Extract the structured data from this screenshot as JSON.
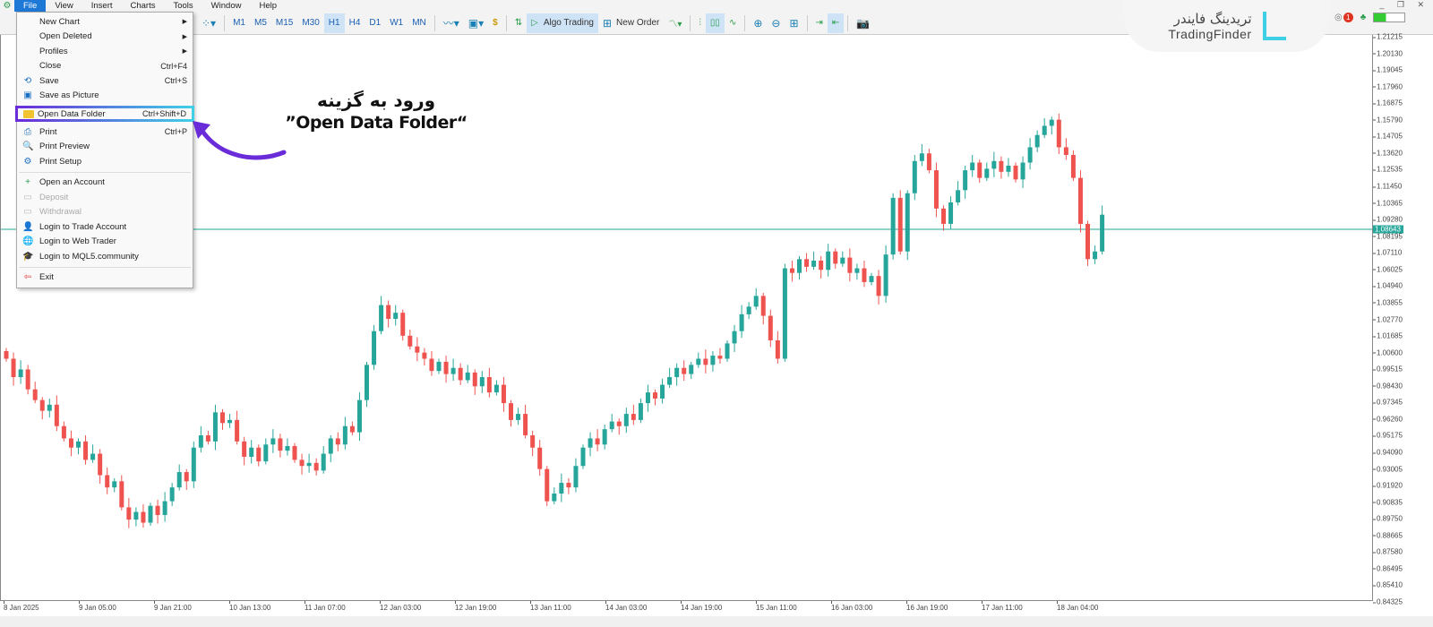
{
  "menubar": {
    "items": [
      "File",
      "View",
      "Insert",
      "Charts",
      "Tools",
      "Window",
      "Help"
    ],
    "active": "File"
  },
  "toolbar": {
    "timeframes": [
      "M1",
      "M5",
      "M15",
      "M30",
      "H1",
      "H4",
      "D1",
      "W1",
      "MN"
    ],
    "active_timeframe": "H1",
    "algo_trading": "Algo Trading",
    "new_order": "New Order"
  },
  "file_menu": {
    "items": [
      {
        "label": "New Chart",
        "submenu": true
      },
      {
        "label": "Open Deleted",
        "submenu": true
      },
      {
        "label": "Profiles",
        "submenu": true
      },
      {
        "label": "Close",
        "shortcut": "Ctrl+F4"
      },
      {
        "label": "Save",
        "shortcut": "Ctrl+S",
        "icon": "save-icon"
      },
      {
        "label": "Save as Picture",
        "icon": "picture-icon"
      },
      {
        "label": "Open Data Folder",
        "shortcut": "Ctrl+Shift+D",
        "icon": "folder-icon",
        "highlighted": true
      },
      {
        "label": "Print",
        "shortcut": "Ctrl+P",
        "icon": "printer-icon"
      },
      {
        "label": "Print Preview",
        "icon": "print-preview-icon"
      },
      {
        "label": "Print Setup",
        "icon": "print-setup-icon"
      },
      {
        "label": "Open an Account",
        "icon": "plus-icon"
      },
      {
        "label": "Deposit",
        "icon": "deposit-icon",
        "disabled": true
      },
      {
        "label": "Withdrawal",
        "icon": "withdrawal-icon",
        "disabled": true
      },
      {
        "label": "Login to Trade Account",
        "icon": "user-icon"
      },
      {
        "label": "Login to Web Trader",
        "icon": "globe-icon"
      },
      {
        "label": "Login to MQL5.community",
        "icon": "mql5-icon"
      },
      {
        "label": "Exit",
        "icon": "exit-icon"
      }
    ]
  },
  "annotation": {
    "line1": "ورود به گزینه",
    "line2": "”Open Data Folder“",
    "color": "#6a2bd9"
  },
  "logo": {
    "persian": "تریدینگ فایندر",
    "english": "TradingFinder"
  },
  "notifications": {
    "count": "1"
  },
  "chart_data": {
    "type": "candlestick",
    "ylim": [
      0.84325,
      1.21215
    ],
    "price_ticks": [
      "1.21215",
      "1.20130",
      "1.19045",
      "1.17960",
      "1.16875",
      "1.15790",
      "1.14705",
      "1.13620",
      "1.12535",
      "1.11450",
      "1.10365",
      "1.09280",
      "1.08195",
      "1.07110",
      "1.06025",
      "1.04940",
      "1.03855",
      "1.02770",
      "1.01685",
      "1.00600",
      "0.99515",
      "0.98430",
      "0.97345",
      "0.96260",
      "0.95175",
      "0.94090",
      "0.93005",
      "0.91920",
      "0.90835",
      "0.89750",
      "0.88665",
      "0.87580",
      "0.86495",
      "0.85410",
      "0.84325"
    ],
    "current_price": "1.08643",
    "time_ticks": [
      "8 Jan 2025",
      "9 Jan 05:00",
      "9 Jan 21:00",
      "10 Jan 13:00",
      "11 Jan 07:00",
      "12 Jan 03:00",
      "12 Jan 19:00",
      "13 Jan 11:00",
      "14 Jan 03:00",
      "14 Jan 19:00",
      "15 Jan 11:00",
      "16 Jan 03:00",
      "16 Jan 19:00",
      "17 Jan 11:00",
      "18 Jan 04:00"
    ],
    "bull_color": "#26a69a",
    "bear_color": "#ef5350",
    "closes": [
      1.002,
      0.99,
      0.995,
      0.982,
      0.975,
      0.968,
      0.972,
      0.958,
      0.95,
      0.944,
      0.948,
      0.936,
      0.94,
      0.926,
      0.918,
      0.922,
      0.905,
      0.897,
      0.902,
      0.895,
      0.906,
      0.9,
      0.909,
      0.918,
      0.928,
      0.922,
      0.944,
      0.952,
      0.948,
      0.967,
      0.96,
      0.962,
      0.948,
      0.938,
      0.944,
      0.935,
      0.946,
      0.95,
      0.942,
      0.945,
      0.936,
      0.932,
      0.934,
      0.929,
      0.94,
      0.95,
      0.946,
      0.958,
      0.954,
      0.975,
      0.998,
      1.02,
      1.037,
      1.028,
      1.032,
      1.017,
      1.01,
      1.006,
      1.002,
      0.994,
      1.0,
      0.992,
      0.996,
      0.988,
      0.993,
      0.984,
      0.99,
      0.98,
      0.985,
      0.973,
      0.962,
      0.966,
      0.952,
      0.944,
      0.93,
      0.909,
      0.914,
      0.921,
      0.918,
      0.932,
      0.944,
      0.95,
      0.946,
      0.956,
      0.961,
      0.958,
      0.966,
      0.962,
      0.973,
      0.98,
      0.976,
      0.985,
      0.99,
      0.996,
      0.992,
      0.998,
      1.002,
      0.998,
      1.004,
      1.002,
      1.012,
      1.02,
      1.031,
      1.036,
      1.043,
      1.03,
      1.014,
      1.002,
      1.061,
      1.058,
      1.067,
      1.062,
      1.066,
      1.06,
      1.072,
      1.064,
      1.068,
      1.058,
      1.061,
      1.052,
      1.056,
      1.043,
      1.07,
      1.107,
      1.072,
      1.11,
      1.131,
      1.136,
      1.125,
      1.1,
      1.09,
      1.104,
      1.112,
      1.125,
      1.13,
      1.12,
      1.126,
      1.131,
      1.124,
      1.128,
      1.119,
      1.13,
      1.14,
      1.148,
      1.154,
      1.158,
      1.14,
      1.135,
      1.12,
      1.09,
      1.067,
      1.072,
      1.096
    ]
  }
}
